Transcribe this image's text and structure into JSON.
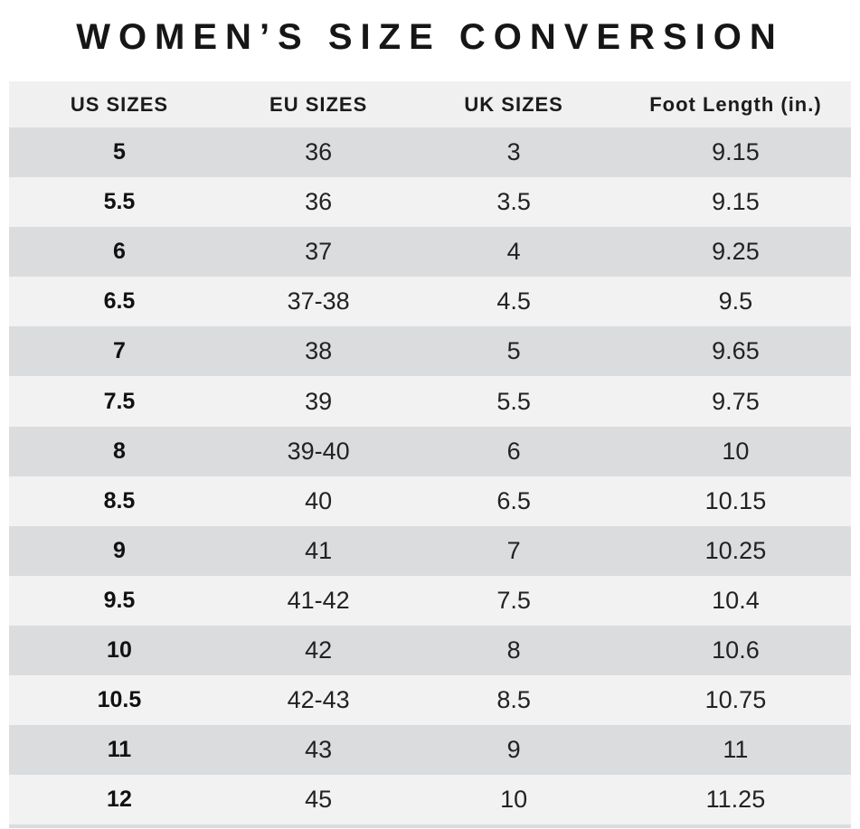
{
  "title": "WOMEN’S SIZE CONVERSION",
  "chart_data": {
    "type": "table",
    "title": "WOMEN’S SIZE CONVERSION",
    "columns": [
      "US SIZES",
      "EU SIZES",
      "UK SIZES",
      "Foot Length (in.)"
    ],
    "rows": [
      [
        "5",
        "36",
        "3",
        "9.15"
      ],
      [
        "5.5",
        "36",
        "3.5",
        "9.15"
      ],
      [
        "6",
        "37",
        "4",
        "9.25"
      ],
      [
        "6.5",
        "37-38",
        "4.5",
        "9.5"
      ],
      [
        "7",
        "38",
        "5",
        "9.65"
      ],
      [
        "7.5",
        "39",
        "5.5",
        "9.75"
      ],
      [
        "8",
        "39-40",
        "6",
        "10"
      ],
      [
        "8.5",
        "40",
        "6.5",
        "10.15"
      ],
      [
        "9",
        "41",
        "7",
        "10.25"
      ],
      [
        "9.5",
        "41-42",
        "7.5",
        "10.4"
      ],
      [
        "10",
        "42",
        "8",
        "10.6"
      ],
      [
        "10.5",
        "42-43",
        "8.5",
        "10.75"
      ],
      [
        "11",
        "43",
        "9",
        "11"
      ],
      [
        "12",
        "45",
        "10",
        "11.25"
      ]
    ],
    "layout": {
      "striped": true,
      "stripe_color_dark": "#dbdcde",
      "stripe_color_light": "#f2f2f3",
      "header_background": "#f0f0f0",
      "text_color": "#1b1b1b"
    }
  }
}
